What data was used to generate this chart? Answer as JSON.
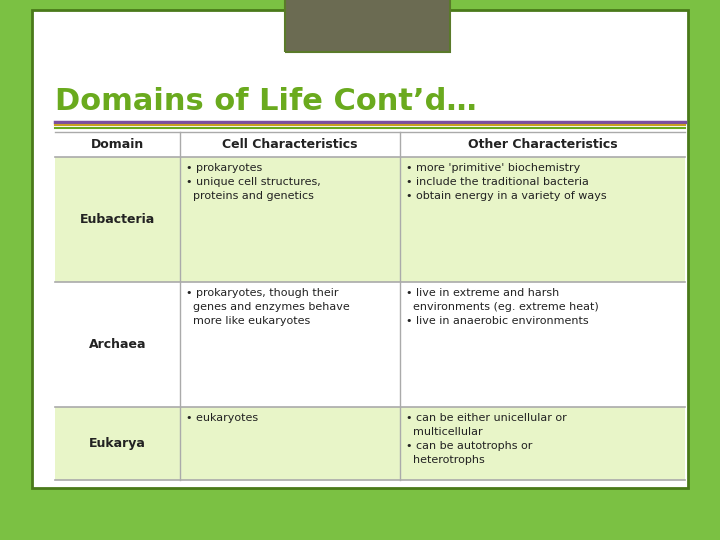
{
  "title": "Domains of Life Cont’d…",
  "title_color": "#6aaa1e",
  "bg_outer": "#7bc143",
  "bg_inner": "#ffffff",
  "header_box_color": "#6b6b52",
  "header_box_border": "#5a7a2a",
  "separator_colors": [
    "#7b4fa0",
    "#c8a020",
    "#6aaa1e"
  ],
  "col_headers": [
    "Domain",
    "Cell Characteristics",
    "Other Characteristics"
  ],
  "table_line_color": "#aaaaaa",
  "row_bg_shaded": "#e8f5c8",
  "row_bg_white": "#ffffff",
  "rows": [
    {
      "domain": "Eubacteria",
      "cell_chars": "• prokaryotes\n• unique cell structures,\n  proteins and genetics",
      "other_chars": "• more 'primitive' biochemistry\n• include the traditional bacteria\n• obtain energy in a variety of ways",
      "shaded": true
    },
    {
      "domain": "Archaea",
      "cell_chars": "• prokaryotes, though their\n  genes and enzymes behave\n  more like eukaryotes",
      "other_chars": "• live in extreme and harsh\n  environments (eg. extreme heat)\n• live in anaerobic environments",
      "shaded": false
    },
    {
      "domain": "Eukarya",
      "cell_chars": "• eukaryotes",
      "other_chars": "• can be either unicellular or\n  multicellular\n• can be autotrophs or\n  heterotrophs",
      "shaded": true
    }
  ]
}
